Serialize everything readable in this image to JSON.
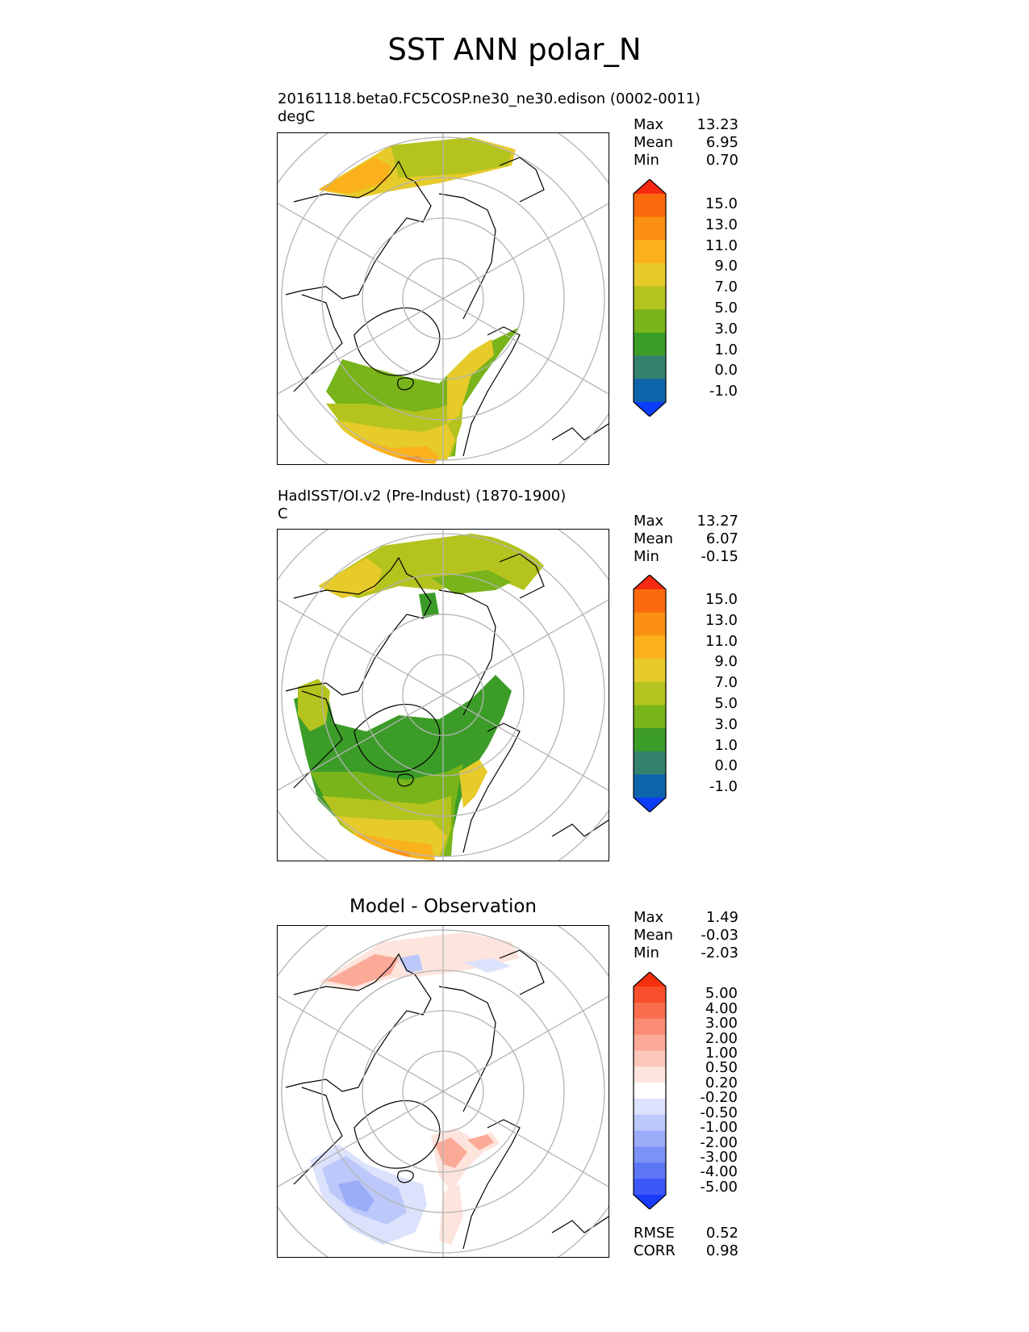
{
  "figure": {
    "title": "SST ANN polar_N"
  },
  "panels": [
    {
      "id": "test",
      "subtitle": "20161118.beta0.FC5COSP.ne30_ne30.edison (0002-0011)",
      "units": "degC",
      "stats": {
        "labels": [
          "Max",
          "Mean",
          "Min"
        ],
        "values": [
          "13.23",
          "6.95",
          "0.70"
        ]
      }
    },
    {
      "id": "ref",
      "subtitle": "HadISST/OI.v2 (Pre-Indust) (1870-1900)",
      "units": "C",
      "stats": {
        "labels": [
          "Max",
          "Mean",
          "Min"
        ],
        "values": [
          "13.27",
          "6.07",
          "-0.15"
        ]
      }
    },
    {
      "id": "diff",
      "title": "Model - Observation",
      "stats": {
        "labels": [
          "Max",
          "Mean",
          "Min"
        ],
        "values": [
          "1.49",
          "-0.03",
          "-2.03"
        ]
      },
      "metrics": {
        "labels": [
          "RMSE",
          "CORR"
        ],
        "values": [
          "0.52",
          "0.98"
        ]
      }
    }
  ],
  "colorbars": {
    "sst": {
      "ticks": [
        "15.0",
        "13.0",
        "11.0",
        "9.0",
        "7.0",
        "5.0",
        "3.0",
        "1.0",
        "0.0",
        "-1.0"
      ],
      "colors": [
        "#f52a10",
        "#fa6a0c",
        "#fb9014",
        "#fbb11c",
        "#e6cb2a",
        "#b4c31e",
        "#78b41a",
        "#3c9c28",
        "#32826e",
        "#0e64aa",
        "#0a3cfa"
      ]
    },
    "diff": {
      "ticks": [
        "5.00",
        "4.00",
        "3.00",
        "2.00",
        "1.00",
        "0.50",
        "0.20",
        "-0.20",
        "-0.50",
        "-1.00",
        "-2.00",
        "-3.00",
        "-4.00",
        "-5.00"
      ],
      "colors": [
        "#f5300e",
        "#f8502c",
        "#fa6e50",
        "#fb8c74",
        "#fcaa98",
        "#fdc8ba",
        "#fde4dc",
        "#ffffff",
        "#dce2fb",
        "#bcc8fa",
        "#9cacf8",
        "#7c92f6",
        "#5c76f6",
        "#3c58f8",
        "#1a3afa"
      ]
    }
  },
  "chart_data": [
    {
      "type": "map",
      "title": "20161118.beta0.FC5COSP.ne30_ne30.edison (0002-0011)",
      "projection": "north polar stereographic",
      "variable": "SST",
      "units": "degC",
      "max": 13.23,
      "mean": 6.95,
      "min": 0.7,
      "contour_levels": [
        -1.0,
        0.0,
        1.0,
        3.0,
        5.0,
        7.0,
        9.0,
        11.0,
        13.0,
        15.0
      ]
    },
    {
      "type": "map",
      "title": "HadISST/OI.v2 (Pre-Indust) (1870-1900)",
      "projection": "north polar stereographic",
      "variable": "SST",
      "units": "C",
      "max": 13.27,
      "mean": 6.07,
      "min": -0.15,
      "contour_levels": [
        -1.0,
        0.0,
        1.0,
        3.0,
        5.0,
        7.0,
        9.0,
        11.0,
        13.0,
        15.0
      ]
    },
    {
      "type": "map",
      "title": "Model - Observation",
      "projection": "north polar stereographic",
      "max": 1.49,
      "mean": -0.03,
      "min": -2.03,
      "rmse": 0.52,
      "corr": 0.98,
      "contour_levels": [
        -5.0,
        -4.0,
        -3.0,
        -2.0,
        -1.0,
        -0.5,
        -0.2,
        0.2,
        0.5,
        1.0,
        2.0,
        3.0,
        4.0,
        5.0
      ]
    }
  ]
}
